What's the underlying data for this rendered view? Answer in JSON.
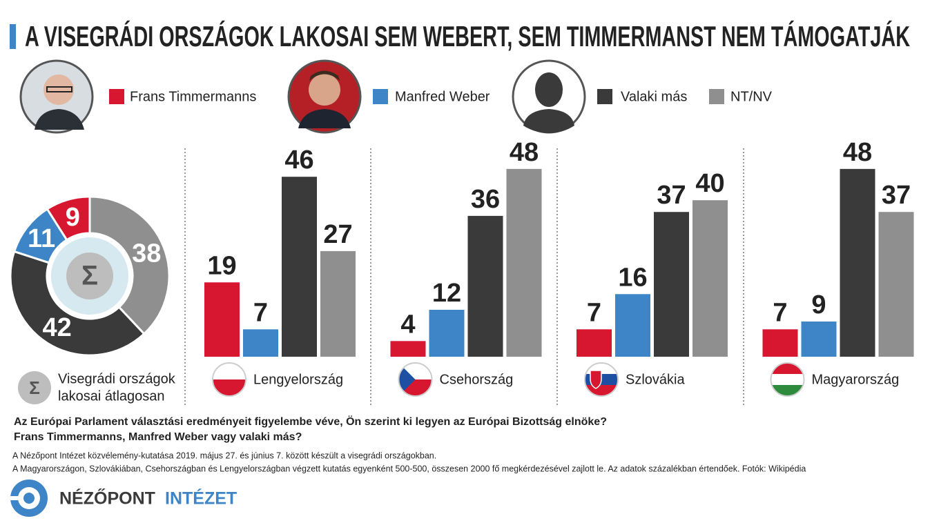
{
  "title": "A VISEGRÁDI ORSZÁGOK LAKOSAI SEM WEBERT, SEM TIMMERMANST NEM TÁMOGATJÁK",
  "legend": [
    {
      "name": "Frans Timmermanns",
      "color": "#d7162f"
    },
    {
      "name": "Manfred Weber",
      "color": "#3d85c6"
    },
    {
      "name": "Valaki más",
      "color": "#3a3a3a"
    },
    {
      "name": "NT/NV",
      "color": "#8f8f8f"
    }
  ],
  "chart_data": [
    {
      "type": "donut",
      "center_label": "Σ",
      "label_lines": [
        "Visegrádi országok",
        "lakosai átlagosan"
      ],
      "values": [
        9,
        11,
        42,
        38
      ]
    },
    {
      "type": "bar",
      "label": "Lengyelország",
      "values": [
        19,
        7,
        46,
        27
      ]
    },
    {
      "type": "bar",
      "label": "Csehország",
      "values": [
        4,
        12,
        36,
        48
      ]
    },
    {
      "type": "bar",
      "label": "Szlovákia",
      "values": [
        7,
        16,
        37,
        40
      ]
    },
    {
      "type": "bar",
      "label": "Magyarország",
      "values": [
        7,
        9,
        48,
        37
      ]
    }
  ],
  "question": [
    "Az Európai Parlament választási eredményeit figyelembe véve, Ön szerint ki legyen az Európai Bizottság elnöke?",
    "Frans Timmermanns, Manfred Weber vagy valaki más?"
  ],
  "notes": [
    "A Nézőpont Intézet közvélemény-kutatása 2019. május 27. és június 7. között készült a visegrádi országokban.",
    "A Magyarországon, Szlovákiában, Csehországban és Lengyelországban végzett kutatás egyenként 500-500, összesen 2000 fő megkérdezésével zajlott le. Az adatok százalékban értendőek. Fotók: Wikipédia"
  ],
  "logo": [
    "NÉZŐPONT",
    "INTÉZET"
  ]
}
